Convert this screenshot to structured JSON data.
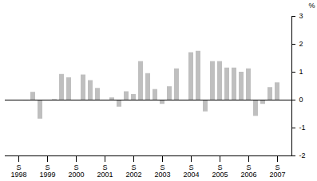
{
  "chart_data": {
    "type": "bar",
    "categories": [
      "S\n1998",
      null,
      null,
      null,
      "S\n1999",
      null,
      null,
      null,
      "S\n2000",
      null,
      null,
      null,
      "S\n2001",
      null,
      null,
      null,
      "S\n2002",
      null,
      null,
      null,
      "S\n2003",
      null,
      null,
      null,
      "S\n2004",
      null,
      null,
      null,
      "S\n2005",
      null,
      null,
      null,
      "S\n2006",
      null,
      null,
      null,
      "S\n2007"
    ],
    "values": [
      0.0,
      -0.03,
      0.28,
      -0.68,
      -0.02,
      0.02,
      0.92,
      0.8,
      0.0,
      0.9,
      0.7,
      0.42,
      0.0,
      0.08,
      -0.25,
      0.3,
      0.2,
      1.38,
      0.95,
      0.38,
      -0.15,
      0.48,
      1.12,
      0.0,
      1.7,
      1.75,
      -0.42,
      1.38,
      1.38,
      1.15,
      1.15,
      1.0,
      1.12,
      -0.58,
      -0.15,
      0.45,
      0.62
    ],
    "color": "#bfbfbf",
    "y_label": "%",
    "ylim": [
      -2,
      3
    ],
    "yticks": [
      -2,
      -1,
      0,
      1,
      2,
      3
    ],
    "grid": false
  }
}
